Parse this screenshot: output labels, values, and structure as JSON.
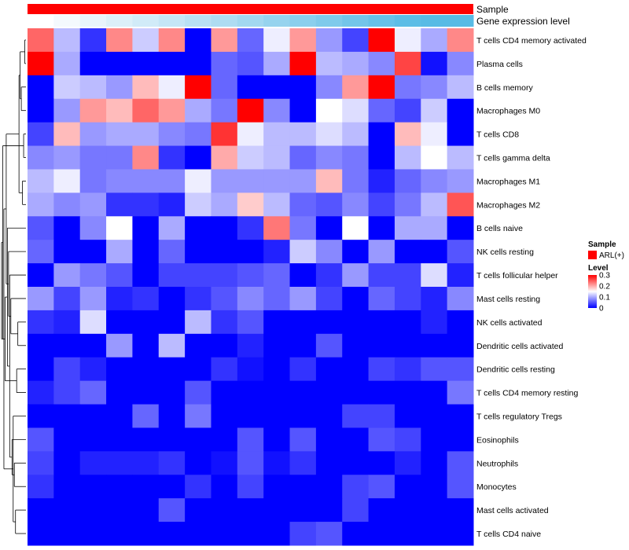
{
  "chart_data": {
    "type": "heatmap",
    "annotation_tracks": [
      {
        "label": "Sample",
        "color": "#ff0000"
      },
      {
        "label": "Gene expression level",
        "colors": [
          "#ffffff",
          "#f4f9fd",
          "#e8f4fb",
          "#dcf0f9",
          "#d1ebf8",
          "#c5e6f6",
          "#b9e1f4",
          "#aedcf2",
          "#a2d8f0",
          "#96d3ee",
          "#8acfed",
          "#7fcaeb",
          "#73c5e9",
          "#67c1e8",
          "#5cbde6",
          "#58bbe5",
          "#58bbe5"
        ]
      }
    ],
    "rows": [
      "T cells CD4 memory activated",
      "Plasma cells",
      "B cells memory",
      "Macrophages M0",
      "T cells CD8",
      "T cells gamma delta",
      "Macrophages M1",
      "Macrophages M2",
      "B cells naive",
      "NK cells resting",
      "T cells follicular helper",
      "Mast cells resting",
      "NK cells activated",
      "Dendritic cells activated",
      "Dendritic cells resting",
      "T cells CD4 memory resting",
      "T cells regulatory  Tregs",
      "Eosinophils",
      "Neutrophils",
      "Monocytes",
      "Mast cells activated",
      "T cells CD4 naive"
    ],
    "values": [
      [
        0.24,
        0.11,
        0.03,
        0.22,
        0.12,
        0.22,
        0.0,
        0.21,
        0.06,
        0.14,
        0.21,
        0.09,
        0.04,
        0.3,
        0.14,
        0.1,
        0.22
      ],
      [
        0.3,
        0.1,
        0.0,
        0.0,
        0.0,
        0.0,
        0.0,
        0.06,
        0.05,
        0.1,
        0.3,
        0.11,
        0.1,
        0.08,
        0.26,
        0.01,
        0.08
      ],
      [
        0.0,
        0.12,
        0.11,
        0.09,
        0.19,
        0.14,
        0.3,
        0.06,
        0.0,
        0.0,
        0.0,
        0.08,
        0.21,
        0.3,
        0.07,
        0.08,
        0.11
      ],
      [
        0.0,
        0.09,
        0.21,
        0.19,
        0.24,
        0.21,
        0.1,
        0.07,
        0.3,
        0.08,
        0.0,
        0.15,
        0.13,
        0.06,
        0.04,
        0.12,
        0.0
      ],
      [
        0.04,
        0.19,
        0.09,
        0.1,
        0.1,
        0.08,
        0.07,
        0.27,
        0.14,
        0.11,
        0.11,
        0.13,
        0.11,
        0.0,
        0.19,
        0.14,
        0.0
      ],
      [
        0.08,
        0.09,
        0.07,
        0.07,
        0.22,
        0.03,
        0.0,
        0.2,
        0.12,
        0.11,
        0.06,
        0.08,
        0.07,
        0.0,
        0.11,
        0.15,
        0.11
      ],
      [
        0.11,
        0.14,
        0.07,
        0.08,
        0.08,
        0.08,
        0.14,
        0.09,
        0.09,
        0.09,
        0.09,
        0.19,
        0.07,
        0.02,
        0.06,
        0.08,
        0.09
      ],
      [
        0.1,
        0.08,
        0.09,
        0.03,
        0.03,
        0.02,
        0.12,
        0.1,
        0.18,
        0.11,
        0.06,
        0.05,
        0.08,
        0.04,
        0.07,
        0.11,
        0.25
      ],
      [
        0.05,
        0.0,
        0.08,
        0.15,
        0.0,
        0.1,
        0.0,
        0.0,
        0.03,
        0.23,
        0.07,
        0.0,
        0.15,
        0.0,
        0.1,
        0.1,
        0.0
      ],
      [
        0.06,
        0.0,
        0.0,
        0.1,
        0.0,
        0.06,
        0.0,
        0.0,
        0.0,
        0.02,
        0.12,
        0.08,
        0.0,
        0.09,
        0.0,
        0.0,
        0.05
      ],
      [
        0.0,
        0.09,
        0.07,
        0.05,
        0.0,
        0.04,
        0.04,
        0.04,
        0.05,
        0.06,
        0.0,
        0.03,
        0.09,
        0.04,
        0.04,
        0.13,
        0.02
      ],
      [
        0.09,
        0.04,
        0.09,
        0.02,
        0.03,
        0.0,
        0.03,
        0.05,
        0.08,
        0.06,
        0.09,
        0.04,
        0.0,
        0.06,
        0.04,
        0.02,
        0.08
      ],
      [
        0.03,
        0.02,
        0.13,
        0.0,
        0.0,
        0.0,
        0.11,
        0.03,
        0.05,
        0.0,
        0.0,
        0.0,
        0.0,
        0.0,
        0.0,
        0.02,
        0.0
      ],
      [
        0.0,
        0.0,
        0.0,
        0.09,
        0.0,
        0.11,
        0.0,
        0.0,
        0.02,
        0.0,
        0.0,
        0.05,
        0.0,
        0.0,
        0.0,
        0.0,
        0.0
      ],
      [
        0.0,
        0.04,
        0.02,
        0.0,
        0.0,
        0.0,
        0.0,
        0.03,
        0.01,
        0.0,
        0.03,
        0.0,
        0.0,
        0.04,
        0.03,
        0.05,
        0.05
      ],
      [
        0.02,
        0.04,
        0.06,
        0.0,
        0.0,
        0.0,
        0.05,
        0.0,
        0.0,
        0.0,
        0.0,
        0.0,
        0.0,
        0.0,
        0.0,
        0.0,
        0.07
      ],
      [
        0.0,
        0.0,
        0.0,
        0.0,
        0.06,
        0.0,
        0.07,
        0.0,
        0.0,
        0.0,
        0.0,
        0.0,
        0.04,
        0.04,
        0.0,
        0.0,
        0.0
      ],
      [
        0.05,
        0.0,
        0.0,
        0.0,
        0.0,
        0.0,
        0.0,
        0.0,
        0.05,
        0.0,
        0.05,
        0.0,
        0.0,
        0.05,
        0.04,
        0.0,
        0.0
      ],
      [
        0.04,
        0.0,
        0.02,
        0.02,
        0.02,
        0.03,
        0.0,
        0.01,
        0.05,
        0.01,
        0.03,
        0.0,
        0.0,
        0.0,
        0.02,
        0.0,
        0.05
      ],
      [
        0.03,
        0.0,
        0.0,
        0.0,
        0.0,
        0.0,
        0.03,
        0.0,
        0.04,
        0.0,
        0.0,
        0.0,
        0.04,
        0.05,
        0.0,
        0.0,
        0.05
      ],
      [
        0.0,
        0.0,
        0.0,
        0.0,
        0.0,
        0.05,
        0.0,
        0.0,
        0.0,
        0.0,
        0.0,
        0.0,
        0.04,
        0.0,
        0.0,
        0.0,
        0.0
      ],
      [
        0.0,
        0.0,
        0.0,
        0.0,
        0.0,
        0.0,
        0.0,
        0.0,
        0.0,
        0.0,
        0.04,
        0.05,
        0.0,
        0.0,
        0.0,
        0.0,
        0.0
      ]
    ],
    "color_scale": {
      "min": 0,
      "max": 0.3,
      "low": "#0000ff",
      "mid": "#ffffff",
      "high": "#ff0000"
    },
    "dendrogram_merges": [
      [
        0,
        1
      ],
      [
        4,
        5
      ],
      [
        6,
        7
      ],
      [
        2,
        3
      ],
      [
        -1,
        -4
      ],
      [
        -3,
        -5
      ],
      [
        12,
        13
      ],
      [
        14,
        15
      ],
      [
        20,
        21
      ],
      [
        18,
        19
      ],
      [
        16,
        -9
      ],
      [
        -10,
        17
      ],
      [
        11,
        -7
      ],
      [
        10,
        -12
      ],
      [
        9,
        -13
      ],
      [
        8,
        -14
      ],
      [
        -6,
        -15
      ],
      [
        -16,
        -8
      ],
      [
        -11,
        -17
      ],
      [
        -2,
        -18
      ],
      [
        -19,
        -20
      ]
    ]
  },
  "legend": {
    "sample_title": "Sample",
    "sample_item": "ARL(+)",
    "sample_color": "#ff0000",
    "level_title": "Level",
    "level_ticks": [
      "0.3",
      "0.2",
      "0.1",
      "0"
    ],
    "level_tick_values": [
      0.3,
      0.2,
      0.1,
      0
    ]
  }
}
